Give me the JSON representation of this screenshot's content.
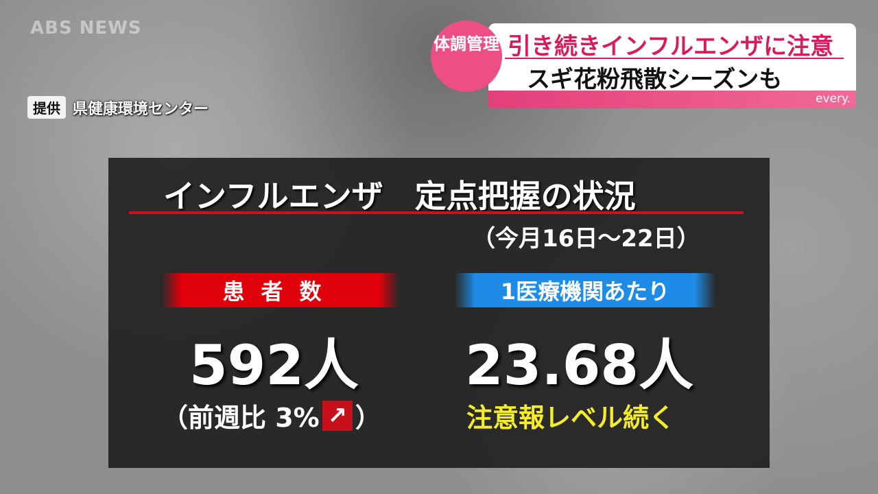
{
  "channel_logo": "ABS NEWS",
  "credit": {
    "tag": "提供",
    "source": "県健康環境センター"
  },
  "headline": {
    "badge": "体調管理",
    "line1": "引き続きインフルエンザに注意",
    "line2": "スギ花粉飛散シーズンも",
    "program": "every.",
    "accent_color": "#e43f7a"
  },
  "panel": {
    "title": "インフルエンザ　定点把握の状況",
    "period": "（今月16日～22日）",
    "patients": {
      "label": "患者数",
      "value": "592人",
      "change_prefix": "（前週比 3%",
      "change_icon": "arrow-up-right-icon",
      "change_suffix": "）"
    },
    "per_institution": {
      "label": "1医療機関あたり",
      "value": "23.68人",
      "note": "注意報レベル続く"
    }
  }
}
